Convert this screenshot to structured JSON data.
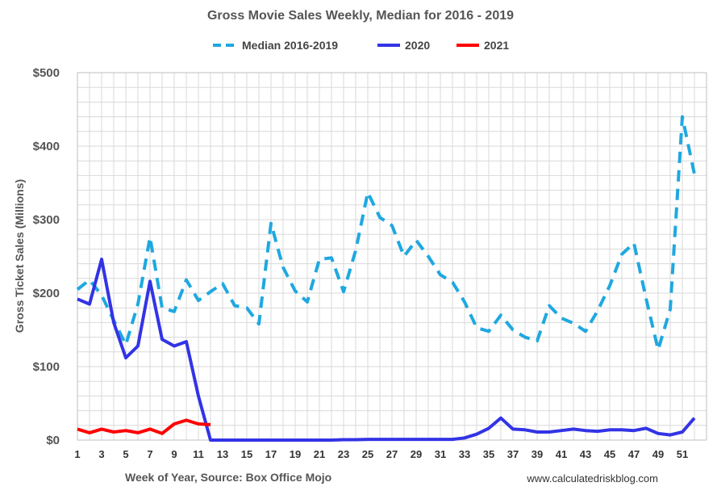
{
  "chart_data": {
    "type": "line",
    "title": "Gross Movie Sales Weekly, Median for 2016 - 2019",
    "xlabel": "Week of Year, Source: Box Office Mojo",
    "ylabel": "Gross Ticket Sales (Millions)",
    "source_note": "www.calculatedriskblog.com",
    "xlim": [
      1,
      53
    ],
    "ylim": [
      0,
      500
    ],
    "x_ticks": [
      1,
      3,
      5,
      7,
      9,
      11,
      13,
      15,
      17,
      19,
      21,
      23,
      25,
      27,
      29,
      31,
      33,
      35,
      37,
      39,
      41,
      43,
      45,
      47,
      49,
      51
    ],
    "y_ticks": [
      0,
      100,
      200,
      300,
      400,
      500
    ],
    "y_tick_labels": [
      "$0",
      "$100",
      "$200",
      "$300",
      "$400",
      "$500"
    ],
    "series": [
      {
        "name": "Median 2016-2019",
        "color": "#1fa8e0",
        "dash": "dashed",
        "x": [
          1,
          2,
          3,
          4,
          5,
          6,
          7,
          8,
          9,
          10,
          11,
          12,
          13,
          14,
          15,
          16,
          17,
          18,
          19,
          20,
          21,
          22,
          23,
          24,
          25,
          26,
          27,
          28,
          29,
          30,
          31,
          32,
          33,
          34,
          35,
          36,
          37,
          38,
          39,
          40,
          41,
          42,
          43,
          44,
          45,
          46,
          47,
          48,
          49,
          50,
          51,
          52
        ],
        "values": [
          205,
          218,
          197,
          163,
          130,
          185,
          276,
          180,
          175,
          218,
          190,
          202,
          213,
          183,
          180,
          158,
          295,
          235,
          203,
          188,
          246,
          248,
          202,
          258,
          337,
          303,
          292,
          250,
          272,
          250,
          225,
          215,
          188,
          153,
          148,
          170,
          150,
          140,
          135,
          183,
          166,
          159,
          148,
          176,
          210,
          253,
          268,
          193,
          123,
          178,
          440,
          362
        ]
      },
      {
        "name": "2020",
        "color": "#3333e6",
        "dash": "solid",
        "x": [
          1,
          2,
          3,
          4,
          5,
          6,
          7,
          8,
          9,
          10,
          11,
          12,
          13,
          14,
          15,
          16,
          17,
          18,
          19,
          20,
          21,
          22,
          23,
          24,
          25,
          26,
          27,
          28,
          29,
          30,
          31,
          32,
          33,
          34,
          35,
          36,
          37,
          38,
          39,
          40,
          41,
          42,
          43,
          44,
          45,
          46,
          47,
          48,
          49,
          50,
          51,
          52
        ],
        "values": [
          192,
          185,
          246,
          160,
          112,
          128,
          216,
          137,
          128,
          134,
          60,
          0,
          0,
          0,
          0,
          0,
          0,
          0,
          0,
          0,
          0,
          0,
          0.5,
          0.5,
          1,
          1,
          1,
          1,
          1,
          1,
          1,
          1,
          3,
          8,
          16,
          30,
          15,
          14,
          11,
          11,
          13,
          15,
          13,
          12,
          14,
          14,
          13,
          16,
          9,
          7,
          11,
          30
        ]
      },
      {
        "name": "2021",
        "color": "#ff0000",
        "dash": "solid",
        "x": [
          1,
          2,
          3,
          4,
          5,
          6,
          7,
          8,
          9,
          10,
          11,
          12
        ],
        "values": [
          15,
          10,
          15,
          11,
          13,
          10,
          15,
          9,
          22,
          27,
          22,
          21
        ]
      }
    ]
  }
}
